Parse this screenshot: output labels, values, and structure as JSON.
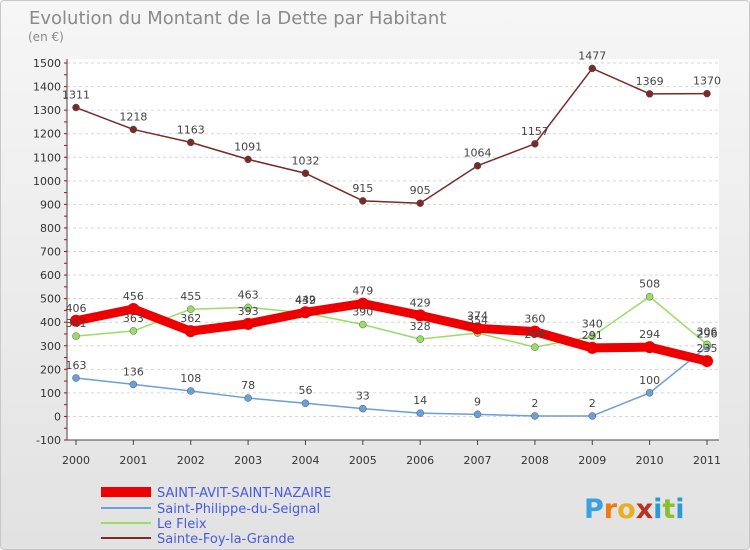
{
  "chart_data": {
    "type": "line",
    "title": "Evolution du Montant de la Dette par Habitant",
    "subtitle": "(en €)",
    "categories": [
      "2000",
      "2001",
      "2002",
      "2003",
      "2004",
      "2005",
      "2006",
      "2007",
      "2008",
      "2009",
      "2010",
      "2011"
    ],
    "ylim": [
      -100,
      1500
    ],
    "yticks": [
      -100,
      0,
      100,
      200,
      300,
      400,
      500,
      600,
      700,
      800,
      900,
      1000,
      1100,
      1200,
      1300,
      1400,
      1500
    ],
    "grid": true,
    "legend_position": "bottom-left",
    "series": [
      {
        "name": "SAINT-AVIT-SAINT-NAZAIRE",
        "color": "#ee0000",
        "line_width": "bold",
        "values": [
          406,
          456,
          362,
          393,
          442,
          479,
          429,
          374,
          360,
          291,
          294,
          235
        ]
      },
      {
        "name": "Saint-Philippe-du-Seignal",
        "color": "#6a9fd8",
        "values": [
          163,
          136,
          108,
          78,
          56,
          33,
          14,
          9,
          2,
          2,
          100,
          296
        ]
      },
      {
        "name": "Le Fleix",
        "color": "#99dd66",
        "values": [
          341,
          363,
          455,
          463,
          439,
          390,
          328,
          354,
          294,
          340,
          508,
          306
        ]
      },
      {
        "name": "Sainte-Foy-la-Grande",
        "color": "#7a2a2a",
        "values": [
          1311,
          1218,
          1163,
          1091,
          1032,
          915,
          905,
          1064,
          1157,
          1477,
          1369,
          1370
        ]
      }
    ]
  },
  "logo": {
    "letters": [
      "P",
      "r",
      "o",
      "x",
      "i",
      "t",
      "i"
    ],
    "colors": [
      "#3aa0e0",
      "#f07a10",
      "#e8b020",
      "#c03020",
      "#2a9ad8",
      "#8ac030",
      "#2a9ad8"
    ]
  }
}
